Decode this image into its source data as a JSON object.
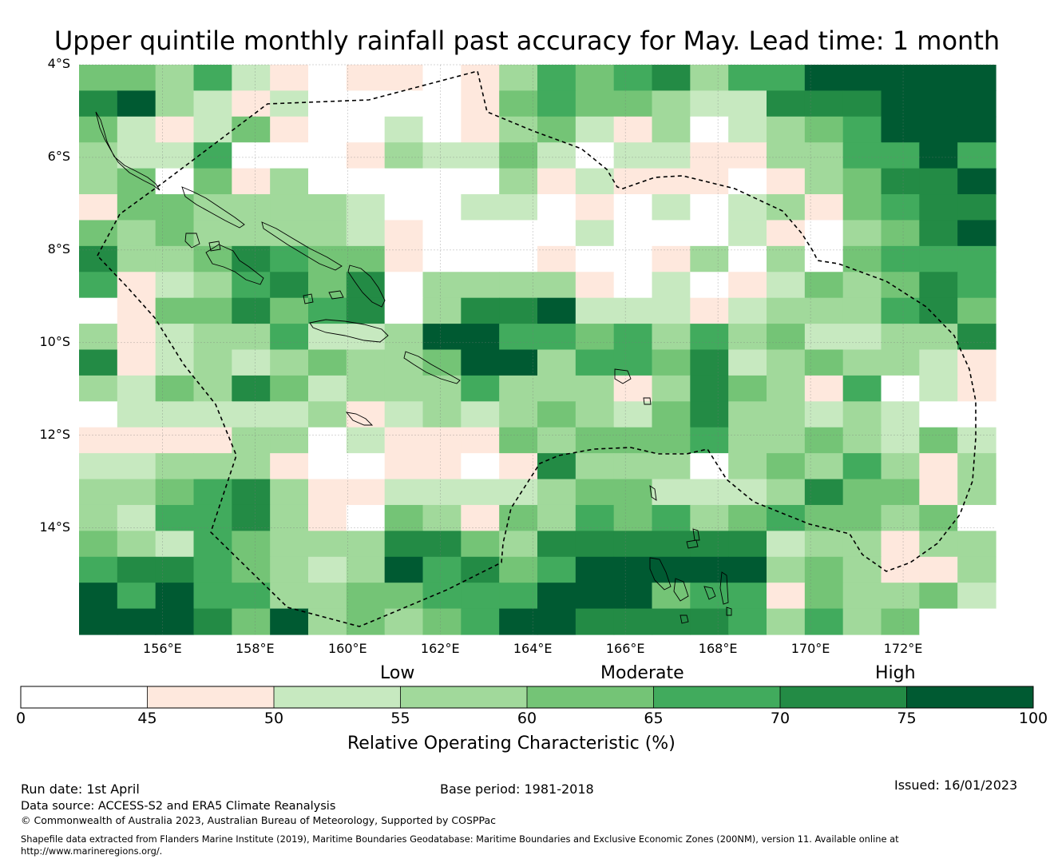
{
  "title": "Upper quintile monthly rainfall past accuracy for May. Lead time: 1 month",
  "map": {
    "lon_ticks": [
      "156°E",
      "158°E",
      "160°E",
      "162°E",
      "164°E",
      "166°E",
      "168°E",
      "170°E",
      "172°E"
    ],
    "lon_values": [
      156,
      158,
      160,
      162,
      164,
      166,
      168,
      170,
      172
    ],
    "lat_ticks": [
      "4°S",
      "6°S",
      "8°S",
      "10°S",
      "12°S",
      "14°S"
    ],
    "lat_values": [
      -4,
      -6,
      -8,
      -10,
      -12,
      -14
    ],
    "lon_range": [
      154.2,
      174.0
    ],
    "lat_range": [
      -16.3,
      -4.0
    ],
    "grid": true,
    "cell_colors": [
      "#ffffff",
      "#fee8dd",
      "#c7e9c0",
      "#a1d99b",
      "#74c476",
      "#41ab5d",
      "#238b45",
      "#005a32"
    ],
    "cell_levels_note": "row-major, 0=<45%,1=45-50,2=50-55,3=55-60,4=60-65,5=65-70,6=70-75,7=75-100",
    "cells": [
      [
        4,
        4,
        3,
        5,
        2,
        1,
        0,
        1,
        1,
        0,
        1,
        3,
        5,
        4,
        5,
        6,
        3,
        5,
        5,
        7,
        7,
        7,
        7,
        7
      ],
      [
        6,
        7,
        3,
        2,
        1,
        2,
        0,
        0,
        0,
        0,
        1,
        4,
        5,
        4,
        4,
        3,
        2,
        2,
        6,
        6,
        6,
        7,
        7,
        7
      ],
      [
        4,
        2,
        1,
        2,
        4,
        1,
        0,
        0,
        2,
        0,
        1,
        3,
        4,
        2,
        1,
        3,
        0,
        2,
        3,
        4,
        5,
        7,
        7,
        7
      ],
      [
        3,
        2,
        2,
        5,
        0,
        0,
        0,
        1,
        3,
        2,
        2,
        4,
        2,
        0,
        2,
        2,
        1,
        1,
        3,
        3,
        5,
        5,
        7,
        5
      ],
      [
        3,
        4,
        0,
        4,
        1,
        3,
        0,
        0,
        0,
        0,
        0,
        3,
        1,
        2,
        1,
        1,
        1,
        0,
        1,
        3,
        4,
        6,
        6,
        7
      ],
      [
        1,
        4,
        4,
        3,
        3,
        3,
        3,
        2,
        0,
        0,
        2,
        2,
        0,
        1,
        0,
        2,
        0,
        2,
        3,
        1,
        4,
        5,
        6,
        6
      ],
      [
        4,
        3,
        4,
        3,
        3,
        3,
        3,
        2,
        1,
        0,
        0,
        0,
        0,
        2,
        0,
        0,
        0,
        2,
        1,
        0,
        3,
        4,
        6,
        7
      ],
      [
        6,
        3,
        3,
        4,
        6,
        5,
        4,
        4,
        1,
        0,
        0,
        0,
        1,
        0,
        0,
        1,
        3,
        0,
        3,
        0,
        4,
        5,
        5,
        5
      ],
      [
        5,
        1,
        2,
        3,
        5,
        6,
        4,
        6,
        0,
        3,
        3,
        3,
        3,
        1,
        0,
        2,
        0,
        1,
        2,
        4,
        3,
        4,
        6,
        5
      ],
      [
        0,
        1,
        4,
        4,
        6,
        4,
        5,
        6,
        0,
        3,
        6,
        6,
        7,
        2,
        2,
        2,
        1,
        2,
        3,
        3,
        3,
        5,
        6,
        4
      ],
      [
        3,
        1,
        2,
        3,
        3,
        5,
        2,
        2,
        3,
        7,
        7,
        5,
        5,
        4,
        5,
        3,
        5,
        3,
        4,
        2,
        2,
        3,
        3,
        6
      ],
      [
        6,
        1,
        2,
        3,
        2,
        3,
        4,
        3,
        3,
        4,
        7,
        7,
        3,
        5,
        5,
        4,
        6,
        2,
        3,
        4,
        3,
        3,
        2,
        1
      ],
      [
        3,
        2,
        4,
        3,
        6,
        4,
        2,
        3,
        3,
        3,
        5,
        3,
        3,
        3,
        1,
        3,
        6,
        4,
        3,
        1,
        5,
        0,
        2,
        1
      ],
      [
        0,
        2,
        2,
        2,
        2,
        2,
        3,
        1,
        2,
        3,
        2,
        3,
        4,
        3,
        2,
        4,
        6,
        3,
        3,
        2,
        3,
        2,
        0,
        0
      ],
      [
        1,
        1,
        1,
        1,
        3,
        3,
        0,
        2,
        1,
        1,
        1,
        4,
        3,
        4,
        4,
        4,
        5,
        3,
        3,
        4,
        3,
        2,
        4,
        2
      ],
      [
        2,
        2,
        3,
        3,
        3,
        1,
        0,
        0,
        1,
        1,
        0,
        1,
        6,
        3,
        3,
        3,
        0,
        3,
        4,
        3,
        5,
        3,
        1,
        3
      ],
      [
        3,
        3,
        4,
        5,
        6,
        3,
        1,
        1,
        2,
        2,
        2,
        2,
        3,
        4,
        4,
        2,
        2,
        2,
        3,
        6,
        4,
        4,
        1,
        3
      ],
      [
        3,
        2,
        5,
        5,
        6,
        3,
        1,
        0,
        4,
        3,
        1,
        4,
        3,
        5,
        4,
        5,
        3,
        4,
        5,
        4,
        4,
        3,
        4,
        0
      ],
      [
        4,
        3,
        2,
        5,
        4,
        3,
        3,
        3,
        6,
        6,
        4,
        3,
        6,
        6,
        6,
        6,
        6,
        6,
        2,
        3,
        3,
        1,
        3,
        3
      ],
      [
        5,
        6,
        6,
        5,
        4,
        3,
        2,
        3,
        7,
        5,
        6,
        4,
        5,
        7,
        7,
        7,
        7,
        7,
        3,
        4,
        3,
        1,
        1,
        3
      ],
      [
        7,
        5,
        7,
        5,
        5,
        3,
        3,
        4,
        4,
        5,
        5,
        5,
        7,
        7,
        7,
        4,
        5,
        5,
        1,
        4,
        3,
        3,
        4,
        2
      ],
      [
        7,
        7,
        7,
        6,
        4,
        7,
        3,
        4,
        3,
        4,
        5,
        7,
        7,
        6,
        6,
        6,
        6,
        5,
        3,
        5,
        3,
        4,
        0,
        0
      ]
    ]
  },
  "colorbar": {
    "ticks": [
      "0",
      "45",
      "50",
      "55",
      "60",
      "65",
      "70",
      "75",
      "100"
    ],
    "category_labels": [
      "Low",
      "Moderate",
      "High"
    ],
    "label": "Relative Operating Characteristic (%)",
    "colors": [
      "#ffffff",
      "#fee8dd",
      "#c7e9c0",
      "#a1d99b",
      "#74c476",
      "#41ab5d",
      "#238b45",
      "#005a32"
    ]
  },
  "footer": {
    "run_date": "Run date: 1st April",
    "base_period": "Base period: 1981-2018",
    "issued": "Issued: 16/01/2023",
    "data_source": "Data source: ACCESS-S2 and ERA5 Climate Reanalysis",
    "copyright": "© Commonwealth of Australia 2023, Australian Bureau of Meteorology, Supported by COSPPac",
    "shapefile_line1": "Shapefile data extracted from Flanders Marine Institute (2019), Maritime Boundaries Geodatabase: Maritime Boundaries and Exclusive Economic Zones (200NM), version 11. Available online at",
    "shapefile_line2": "http://www.marineregions.org/."
  }
}
